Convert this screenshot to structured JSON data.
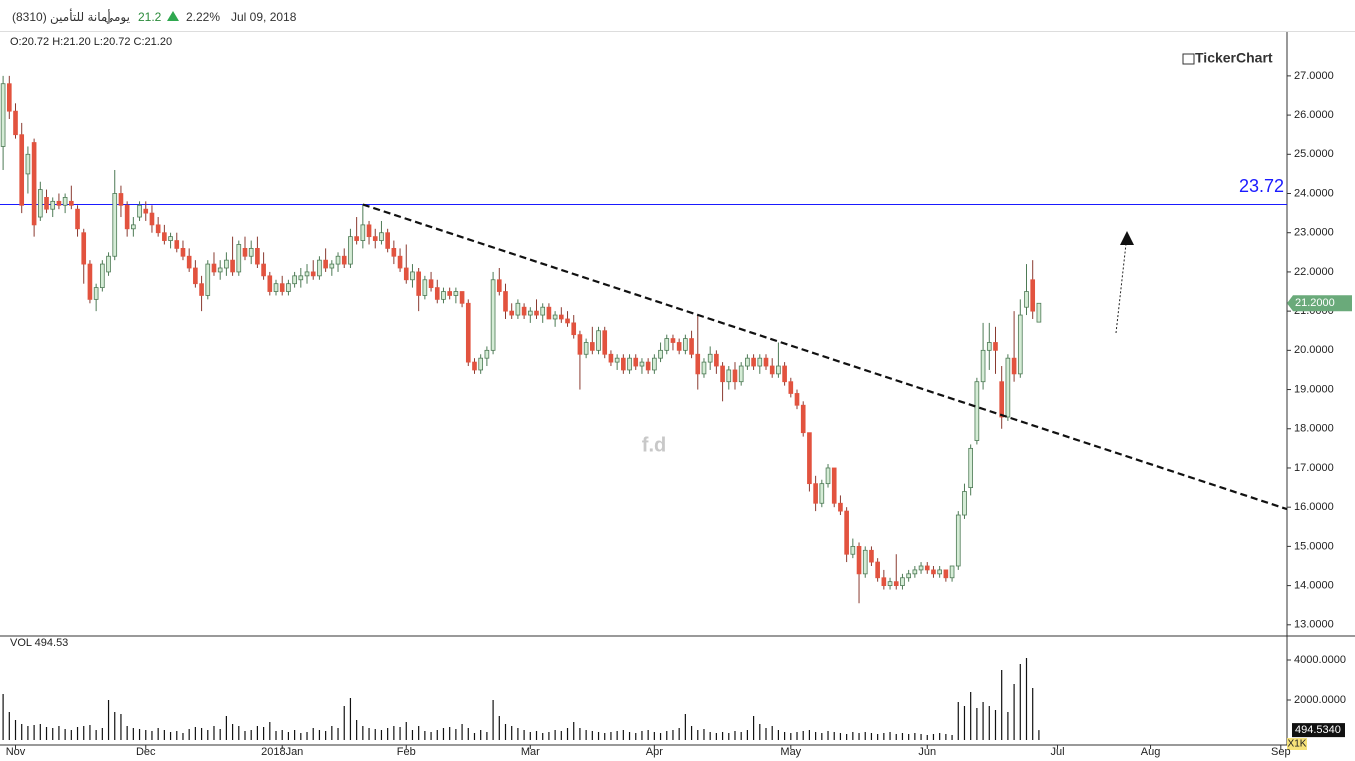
{
  "header": {
    "symbol": "أمانة للتأمين (8310)",
    "period": "يومي",
    "price": 21.2,
    "change": "2.22%",
    "date": "Jul 09, 2018",
    "ohlc": "O:20.72 H:21.20 L:20.72 C:21.20",
    "brand": "TickerChart",
    "watermark": "f.d",
    "volume_caption": "VOL 494.53",
    "volume_unit": "X1K"
  },
  "chart_data": {
    "type": "candlestick",
    "xlim": [
      -0.5,
      207
    ],
    "xticks": [
      {
        "value": 2,
        "label": "Nov"
      },
      {
        "value": 23,
        "label": "Dec"
      },
      {
        "value": 45,
        "label": "2018Jan"
      },
      {
        "value": 65,
        "label": "Feb"
      },
      {
        "value": 85,
        "label": "Mar"
      },
      {
        "value": 105,
        "label": "Apr"
      },
      {
        "value": 127,
        "label": "May"
      },
      {
        "value": 149,
        "label": "Jun"
      },
      {
        "value": 170,
        "label": "Jul"
      },
      {
        "value": 185,
        "label": "Aug"
      },
      {
        "value": 206,
        "label": "Sep"
      }
    ],
    "ylim": [
      12.74,
      27.66
    ],
    "yticks": [
      {
        "value": 13,
        "label": "13.0000"
      },
      {
        "value": 14,
        "label": "14.0000"
      },
      {
        "value": 15,
        "label": "15.0000"
      },
      {
        "value": 16,
        "label": "16.0000"
      },
      {
        "value": 17,
        "label": "17.0000"
      },
      {
        "value": 18,
        "label": "18.0000"
      },
      {
        "value": 19,
        "label": "19.0000"
      },
      {
        "value": 20,
        "label": "20.0000"
      },
      {
        "value": 21,
        "label": "21.0000"
      },
      {
        "value": 22,
        "label": "22.0000"
      },
      {
        "value": 23,
        "label": "23.0000"
      },
      {
        "value": 24,
        "label": "24.0000"
      },
      {
        "value": 25,
        "label": "25.0000"
      },
      {
        "value": 26,
        "label": "26.0000"
      },
      {
        "value": 27,
        "label": "27.0000"
      }
    ],
    "up_color": "#d5ecd6",
    "down_color": "#e2533f",
    "candles": [
      [
        25.2,
        27.0,
        24.6,
        26.8
      ],
      [
        26.8,
        27.0,
        25.9,
        26.1
      ],
      [
        26.1,
        26.3,
        25.4,
        25.5
      ],
      [
        25.5,
        25.8,
        23.5,
        23.7
      ],
      [
        24.5,
        25.2,
        24.0,
        25.0
      ],
      [
        25.3,
        25.4,
        22.9,
        23.2
      ],
      [
        23.4,
        24.3,
        23.3,
        24.1
      ],
      [
        23.9,
        24.1,
        23.5,
        23.6
      ],
      [
        23.6,
        23.9,
        23.4,
        23.8
      ],
      [
        23.8,
        24.0,
        23.6,
        23.7
      ],
      [
        23.7,
        24.0,
        23.5,
        23.9
      ],
      [
        23.8,
        24.2,
        23.6,
        23.7
      ],
      [
        23.6,
        23.7,
        22.9,
        23.1
      ],
      [
        23.0,
        23.1,
        21.7,
        22.2
      ],
      [
        22.2,
        22.3,
        21.2,
        21.3
      ],
      [
        21.3,
        21.7,
        21.0,
        21.6
      ],
      [
        21.6,
        22.3,
        21.5,
        22.2
      ],
      [
        22.0,
        22.5,
        21.9,
        22.4
      ],
      [
        22.4,
        24.6,
        22.3,
        24.0
      ],
      [
        24.0,
        24.2,
        23.4,
        23.7
      ],
      [
        23.7,
        23.8,
        22.9,
        23.1
      ],
      [
        23.1,
        23.4,
        22.9,
        23.2
      ],
      [
        23.4,
        23.8,
        23.3,
        23.7
      ],
      [
        23.6,
        23.8,
        23.3,
        23.5
      ],
      [
        23.5,
        23.7,
        23.0,
        23.2
      ],
      [
        23.2,
        23.4,
        22.9,
        23.0
      ],
      [
        23.0,
        23.2,
        22.7,
        22.8
      ],
      [
        22.8,
        23.0,
        22.6,
        22.9
      ],
      [
        22.8,
        23.0,
        22.5,
        22.6
      ],
      [
        22.6,
        22.8,
        22.3,
        22.4
      ],
      [
        22.4,
        22.6,
        22.0,
        22.1
      ],
      [
        22.1,
        22.3,
        21.6,
        21.7
      ],
      [
        21.7,
        21.9,
        21.0,
        21.4
      ],
      [
        21.4,
        22.3,
        21.3,
        22.2
      ],
      [
        22.2,
        22.5,
        21.9,
        22.0
      ],
      [
        22.0,
        22.3,
        21.8,
        22.1
      ],
      [
        22.1,
        22.5,
        21.9,
        22.3
      ],
      [
        22.3,
        22.9,
        21.9,
        22.0
      ],
      [
        22.0,
        22.8,
        21.9,
        22.7
      ],
      [
        22.6,
        22.9,
        22.3,
        22.4
      ],
      [
        22.4,
        22.8,
        22.2,
        22.6
      ],
      [
        22.6,
        22.9,
        22.1,
        22.2
      ],
      [
        22.2,
        22.5,
        21.8,
        21.9
      ],
      [
        21.9,
        22.0,
        21.4,
        21.5
      ],
      [
        21.5,
        21.8,
        21.4,
        21.7
      ],
      [
        21.7,
        21.9,
        21.4,
        21.5
      ],
      [
        21.5,
        21.8,
        21.4,
        21.7
      ],
      [
        21.7,
        22.0,
        21.6,
        21.9
      ],
      [
        21.8,
        22.1,
        21.6,
        21.9
      ],
      [
        21.9,
        22.2,
        21.7,
        22.0
      ],
      [
        22.0,
        22.3,
        21.8,
        21.9
      ],
      [
        21.9,
        22.4,
        21.8,
        22.3
      ],
      [
        22.3,
        22.6,
        22.0,
        22.1
      ],
      [
        22.1,
        22.3,
        21.9,
        22.2
      ],
      [
        22.2,
        22.5,
        22.0,
        22.4
      ],
      [
        22.4,
        22.6,
        22.1,
        22.2
      ],
      [
        22.2,
        23.1,
        22.1,
        22.9
      ],
      [
        22.9,
        23.4,
        22.7,
        22.8
      ],
      [
        22.8,
        23.72,
        22.6,
        23.2
      ],
      [
        23.2,
        23.3,
        22.7,
        22.9
      ],
      [
        22.9,
        23.1,
        22.6,
        22.8
      ],
      [
        22.8,
        23.3,
        22.7,
        23.0
      ],
      [
        23.0,
        23.1,
        22.5,
        22.6
      ],
      [
        22.6,
        22.8,
        22.2,
        22.4
      ],
      [
        22.4,
        22.6,
        22.0,
        22.1
      ],
      [
        22.1,
        22.7,
        21.7,
        21.8
      ],
      [
        21.8,
        22.2,
        21.6,
        22.0
      ],
      [
        22.0,
        22.1,
        21.0,
        21.4
      ],
      [
        21.4,
        21.9,
        21.3,
        21.8
      ],
      [
        21.8,
        22.0,
        21.5,
        21.6
      ],
      [
        21.6,
        21.8,
        21.2,
        21.3
      ],
      [
        21.3,
        21.6,
        21.2,
        21.5
      ],
      [
        21.5,
        21.6,
        21.3,
        21.4
      ],
      [
        21.4,
        21.6,
        21.2,
        21.5
      ],
      [
        21.5,
        21.5,
        21.1,
        21.2
      ],
      [
        21.2,
        21.3,
        19.6,
        19.7
      ],
      [
        19.7,
        19.8,
        19.4,
        19.5
      ],
      [
        19.5,
        19.9,
        19.4,
        19.8
      ],
      [
        19.8,
        20.1,
        19.6,
        20.0
      ],
      [
        20.0,
        22.0,
        19.9,
        21.8
      ],
      [
        21.8,
        22.1,
        21.4,
        21.5
      ],
      [
        21.5,
        21.7,
        20.8,
        21.0
      ],
      [
        21.0,
        21.2,
        20.8,
        20.9
      ],
      [
        20.9,
        21.3,
        20.8,
        21.2
      ],
      [
        21.1,
        21.2,
        20.8,
        20.9
      ],
      [
        20.9,
        21.1,
        20.7,
        21.0
      ],
      [
        21.0,
        21.3,
        20.8,
        20.9
      ],
      [
        20.9,
        21.2,
        20.7,
        21.1
      ],
      [
        21.1,
        21.2,
        20.8,
        20.8
      ],
      [
        20.8,
        21.0,
        20.6,
        20.9
      ],
      [
        20.9,
        21.1,
        20.7,
        20.8
      ],
      [
        20.8,
        21.0,
        20.6,
        20.7
      ],
      [
        20.7,
        20.9,
        20.3,
        20.4
      ],
      [
        20.4,
        20.5,
        19.0,
        19.9
      ],
      [
        19.9,
        20.3,
        19.8,
        20.2
      ],
      [
        20.2,
        20.6,
        19.9,
        20.0
      ],
      [
        20.0,
        20.6,
        19.9,
        20.5
      ],
      [
        20.5,
        20.6,
        19.8,
        19.9
      ],
      [
        19.9,
        20.0,
        19.6,
        19.7
      ],
      [
        19.7,
        19.9,
        19.5,
        19.8
      ],
      [
        19.8,
        19.9,
        19.4,
        19.5
      ],
      [
        19.5,
        19.9,
        19.4,
        19.8
      ],
      [
        19.8,
        19.9,
        19.5,
        19.6
      ],
      [
        19.6,
        19.8,
        19.4,
        19.7
      ],
      [
        19.7,
        19.8,
        19.4,
        19.5
      ],
      [
        19.5,
        19.9,
        19.4,
        19.8
      ],
      [
        19.8,
        20.2,
        19.7,
        20.0
      ],
      [
        20.0,
        20.4,
        19.9,
        20.3
      ],
      [
        20.3,
        20.4,
        20.0,
        20.2
      ],
      [
        20.2,
        20.3,
        19.9,
        20.0
      ],
      [
        20.0,
        20.4,
        19.9,
        20.3
      ],
      [
        20.3,
        20.5,
        19.8,
        19.9
      ],
      [
        19.9,
        20.9,
        19.0,
        19.4
      ],
      [
        19.4,
        19.8,
        19.3,
        19.7
      ],
      [
        19.7,
        20.1,
        19.5,
        19.9
      ],
      [
        19.9,
        20.0,
        19.4,
        19.6
      ],
      [
        19.6,
        19.7,
        18.7,
        19.2
      ],
      [
        19.2,
        19.6,
        19.0,
        19.5
      ],
      [
        19.5,
        19.7,
        19.0,
        19.2
      ],
      [
        19.2,
        19.7,
        19.1,
        19.6
      ],
      [
        19.6,
        19.9,
        19.5,
        19.8
      ],
      [
        19.8,
        19.9,
        19.5,
        19.6
      ],
      [
        19.6,
        19.9,
        19.4,
        19.8
      ],
      [
        19.8,
        19.9,
        19.5,
        19.6
      ],
      [
        19.6,
        19.8,
        19.3,
        19.4
      ],
      [
        19.4,
        20.2,
        19.3,
        19.6
      ],
      [
        19.6,
        19.7,
        19.1,
        19.2
      ],
      [
        19.2,
        19.3,
        18.8,
        18.9
      ],
      [
        18.9,
        19.0,
        18.5,
        18.6
      ],
      [
        18.6,
        18.7,
        17.8,
        17.9
      ],
      [
        17.9,
        17.9,
        16.4,
        16.6
      ],
      [
        16.6,
        16.8,
        15.9,
        16.1
      ],
      [
        16.1,
        16.7,
        16.0,
        16.6
      ],
      [
        16.6,
        17.1,
        16.5,
        17.0
      ],
      [
        17.0,
        17.0,
        16.0,
        16.1
      ],
      [
        16.1,
        16.3,
        15.8,
        15.9
      ],
      [
        15.9,
        16.0,
        14.6,
        14.8
      ],
      [
        14.8,
        15.2,
        14.7,
        15.0
      ],
      [
        15.0,
        15.1,
        13.55,
        14.3
      ],
      [
        14.3,
        15.0,
        14.2,
        14.9
      ],
      [
        14.9,
        15.0,
        14.5,
        14.6
      ],
      [
        14.6,
        14.7,
        14.1,
        14.2
      ],
      [
        14.2,
        14.4,
        13.9,
        14.0
      ],
      [
        14.0,
        14.2,
        13.9,
        14.1
      ],
      [
        14.1,
        14.8,
        13.9,
        14.0
      ],
      [
        14.0,
        14.3,
        13.9,
        14.2
      ],
      [
        14.2,
        14.4,
        14.1,
        14.3
      ],
      [
        14.3,
        14.5,
        14.2,
        14.4
      ],
      [
        14.4,
        14.6,
        14.3,
        14.5
      ],
      [
        14.5,
        14.6,
        14.3,
        14.4
      ],
      [
        14.4,
        14.5,
        14.2,
        14.3
      ],
      [
        14.3,
        14.5,
        14.2,
        14.4
      ],
      [
        14.4,
        14.4,
        14.1,
        14.2
      ],
      [
        14.2,
        14.5,
        14.1,
        14.5
      ],
      [
        14.5,
        15.9,
        14.4,
        15.8
      ],
      [
        15.8,
        16.6,
        15.7,
        16.4
      ],
      [
        16.5,
        17.6,
        16.3,
        17.5
      ],
      [
        17.7,
        19.3,
        17.6,
        19.2
      ],
      [
        19.2,
        20.7,
        19.0,
        20.0
      ],
      [
        20.0,
        20.7,
        19.5,
        20.2
      ],
      [
        20.2,
        20.6,
        19.4,
        20.0
      ],
      [
        19.2,
        19.6,
        18.0,
        18.3
      ],
      [
        18.3,
        19.9,
        18.2,
        19.8
      ],
      [
        19.8,
        21.0,
        19.2,
        19.4
      ],
      [
        19.4,
        21.3,
        19.3,
        20.9
      ],
      [
        21.1,
        22.2,
        20.9,
        21.5
      ],
      [
        21.8,
        22.3,
        20.8,
        21.0
      ],
      [
        20.72,
        21.2,
        20.72,
        21.2
      ]
    ],
    "volume": [
      2300,
      1400,
      1000,
      800,
      700,
      750,
      800,
      650,
      600,
      700,
      550,
      500,
      650,
      700,
      750,
      500,
      600,
      2000,
      1400,
      1300,
      700,
      600,
      550,
      500,
      450,
      600,
      500,
      400,
      450,
      350,
      550,
      650,
      600,
      500,
      700,
      550,
      1200,
      800,
      700,
      450,
      500,
      700,
      650,
      900,
      450,
      500,
      400,
      500,
      350,
      400,
      600,
      500,
      450,
      700,
      600,
      1700,
      2100,
      1000,
      700,
      600,
      550,
      500,
      600,
      700,
      650,
      900,
      500,
      700,
      450,
      400,
      500,
      600,
      650,
      550,
      800,
      600,
      350,
      500,
      400,
      2000,
      1200,
      800,
      700,
      600,
      500,
      400,
      450,
      350,
      400,
      500,
      450,
      600,
      900,
      600,
      500,
      450,
      400,
      350,
      400,
      450,
      500,
      400,
      350,
      450,
      500,
      400,
      350,
      450,
      500,
      600,
      1300,
      700,
      500,
      550,
      400,
      350,
      400,
      350,
      450,
      400,
      500,
      1200,
      800,
      600,
      700,
      500,
      400,
      350,
      400,
      450,
      500,
      400,
      350,
      450,
      400,
      350,
      300,
      400,
      350,
      400,
      350,
      300,
      350,
      400,
      300,
      350,
      300,
      350,
      300,
      250,
      300,
      350,
      300,
      250,
      1900,
      1700,
      2400,
      1600,
      1900,
      1700,
      1500,
      3500,
      1400,
      2800,
      3800,
      4100,
      2600,
      494.53
    ],
    "volume_color": "#111111",
    "vlim": [
      0,
      5150
    ],
    "vticks": [
      {
        "value": 2000,
        "label": "2000.0000"
      },
      {
        "value": 4000,
        "label": "4000.0000"
      }
    ],
    "last_price": {
      "value": 21.2,
      "label": "21.2000"
    },
    "last_volume": {
      "value": 494.534,
      "label": "494.5340"
    },
    "hline": {
      "value": 23.72,
      "label": "23.72",
      "color": "#1a1aff"
    },
    "trendline": {
      "x": [
        58,
        207
      ],
      "y": [
        23.72,
        15.95
      ]
    }
  }
}
